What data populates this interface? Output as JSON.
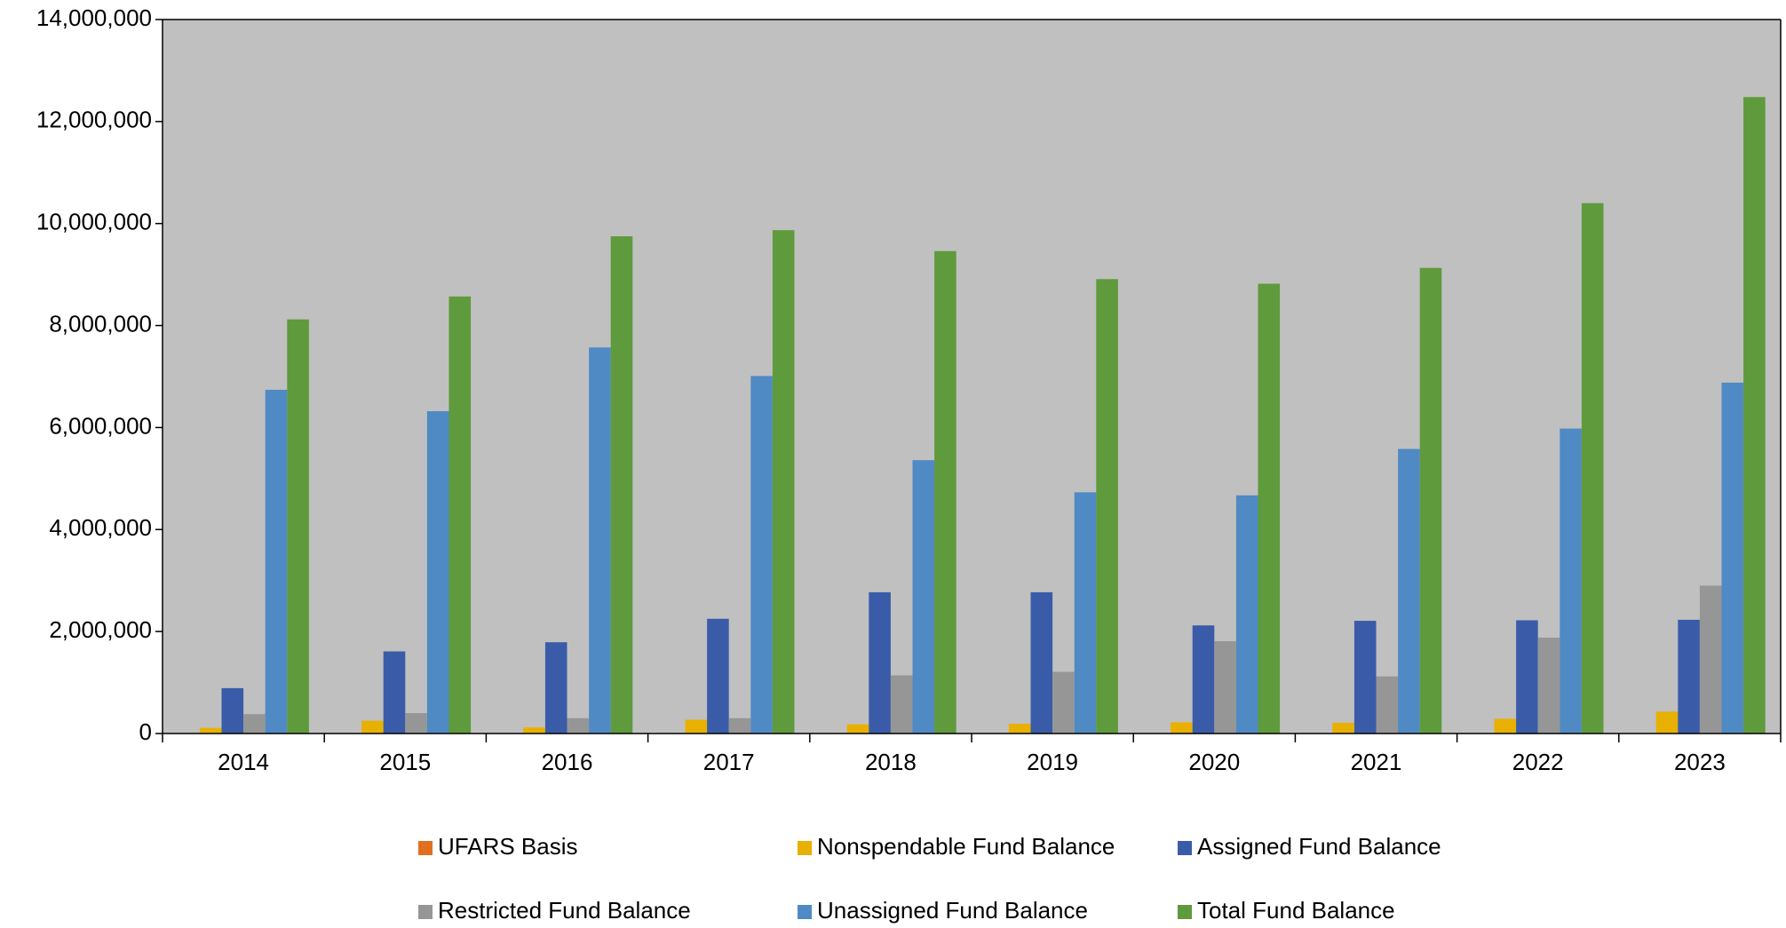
{
  "chart_data": {
    "type": "bar",
    "categories": [
      "2014",
      "2015",
      "2016",
      "2017",
      "2018",
      "2019",
      "2020",
      "2021",
      "2022",
      "2023"
    ],
    "series": [
      {
        "name": "UFARS Basis",
        "color": "#e0701f",
        "values": [
          0,
          0,
          0,
          0,
          0,
          0,
          0,
          0,
          0,
          0
        ]
      },
      {
        "name": "Nonspendable Fund Balance",
        "color": "#e8b000",
        "values": [
          110000,
          250000,
          120000,
          270000,
          180000,
          190000,
          220000,
          210000,
          290000,
          430000
        ]
      },
      {
        "name": "Assigned Fund Balance",
        "color": "#3a5ca8",
        "values": [
          890000,
          1610000,
          1790000,
          2250000,
          2770000,
          2770000,
          2120000,
          2210000,
          2220000,
          2230000
        ]
      },
      {
        "name": "Restricted Fund Balance",
        "color": "#969696",
        "values": [
          380000,
          400000,
          300000,
          300000,
          1140000,
          1210000,
          1810000,
          1120000,
          1880000,
          2900000
        ]
      },
      {
        "name": "Unassigned Fund Balance",
        "color": "#4f8ac4",
        "values": [
          6740000,
          6320000,
          7570000,
          7010000,
          5360000,
          4730000,
          4670000,
          5580000,
          5980000,
          6880000
        ]
      },
      {
        "name": "Total Fund Balance",
        "color": "#5f9a3c",
        "values": [
          8120000,
          8570000,
          9750000,
          9870000,
          9460000,
          8910000,
          8820000,
          9130000,
          10400000,
          12480000
        ]
      }
    ],
    "ylim": [
      0,
      14000000
    ],
    "yticks": [
      0,
      {
        "value": 2000000,
        "label": "2,000,000"
      },
      {
        "value": 4000000,
        "label": "4,000,000"
      },
      {
        "value": 6000000,
        "label": "6,000,000"
      },
      {
        "value": 8000000,
        "label": "8,000,000"
      },
      {
        "value": 10000000,
        "label": "10,000,000"
      },
      {
        "value": 12000000,
        "label": "12,000,000"
      },
      {
        "value": 14000000,
        "label": "14,000,000"
      }
    ],
    "plot_background": "#c0c0c0",
    "legend": "bottom"
  }
}
